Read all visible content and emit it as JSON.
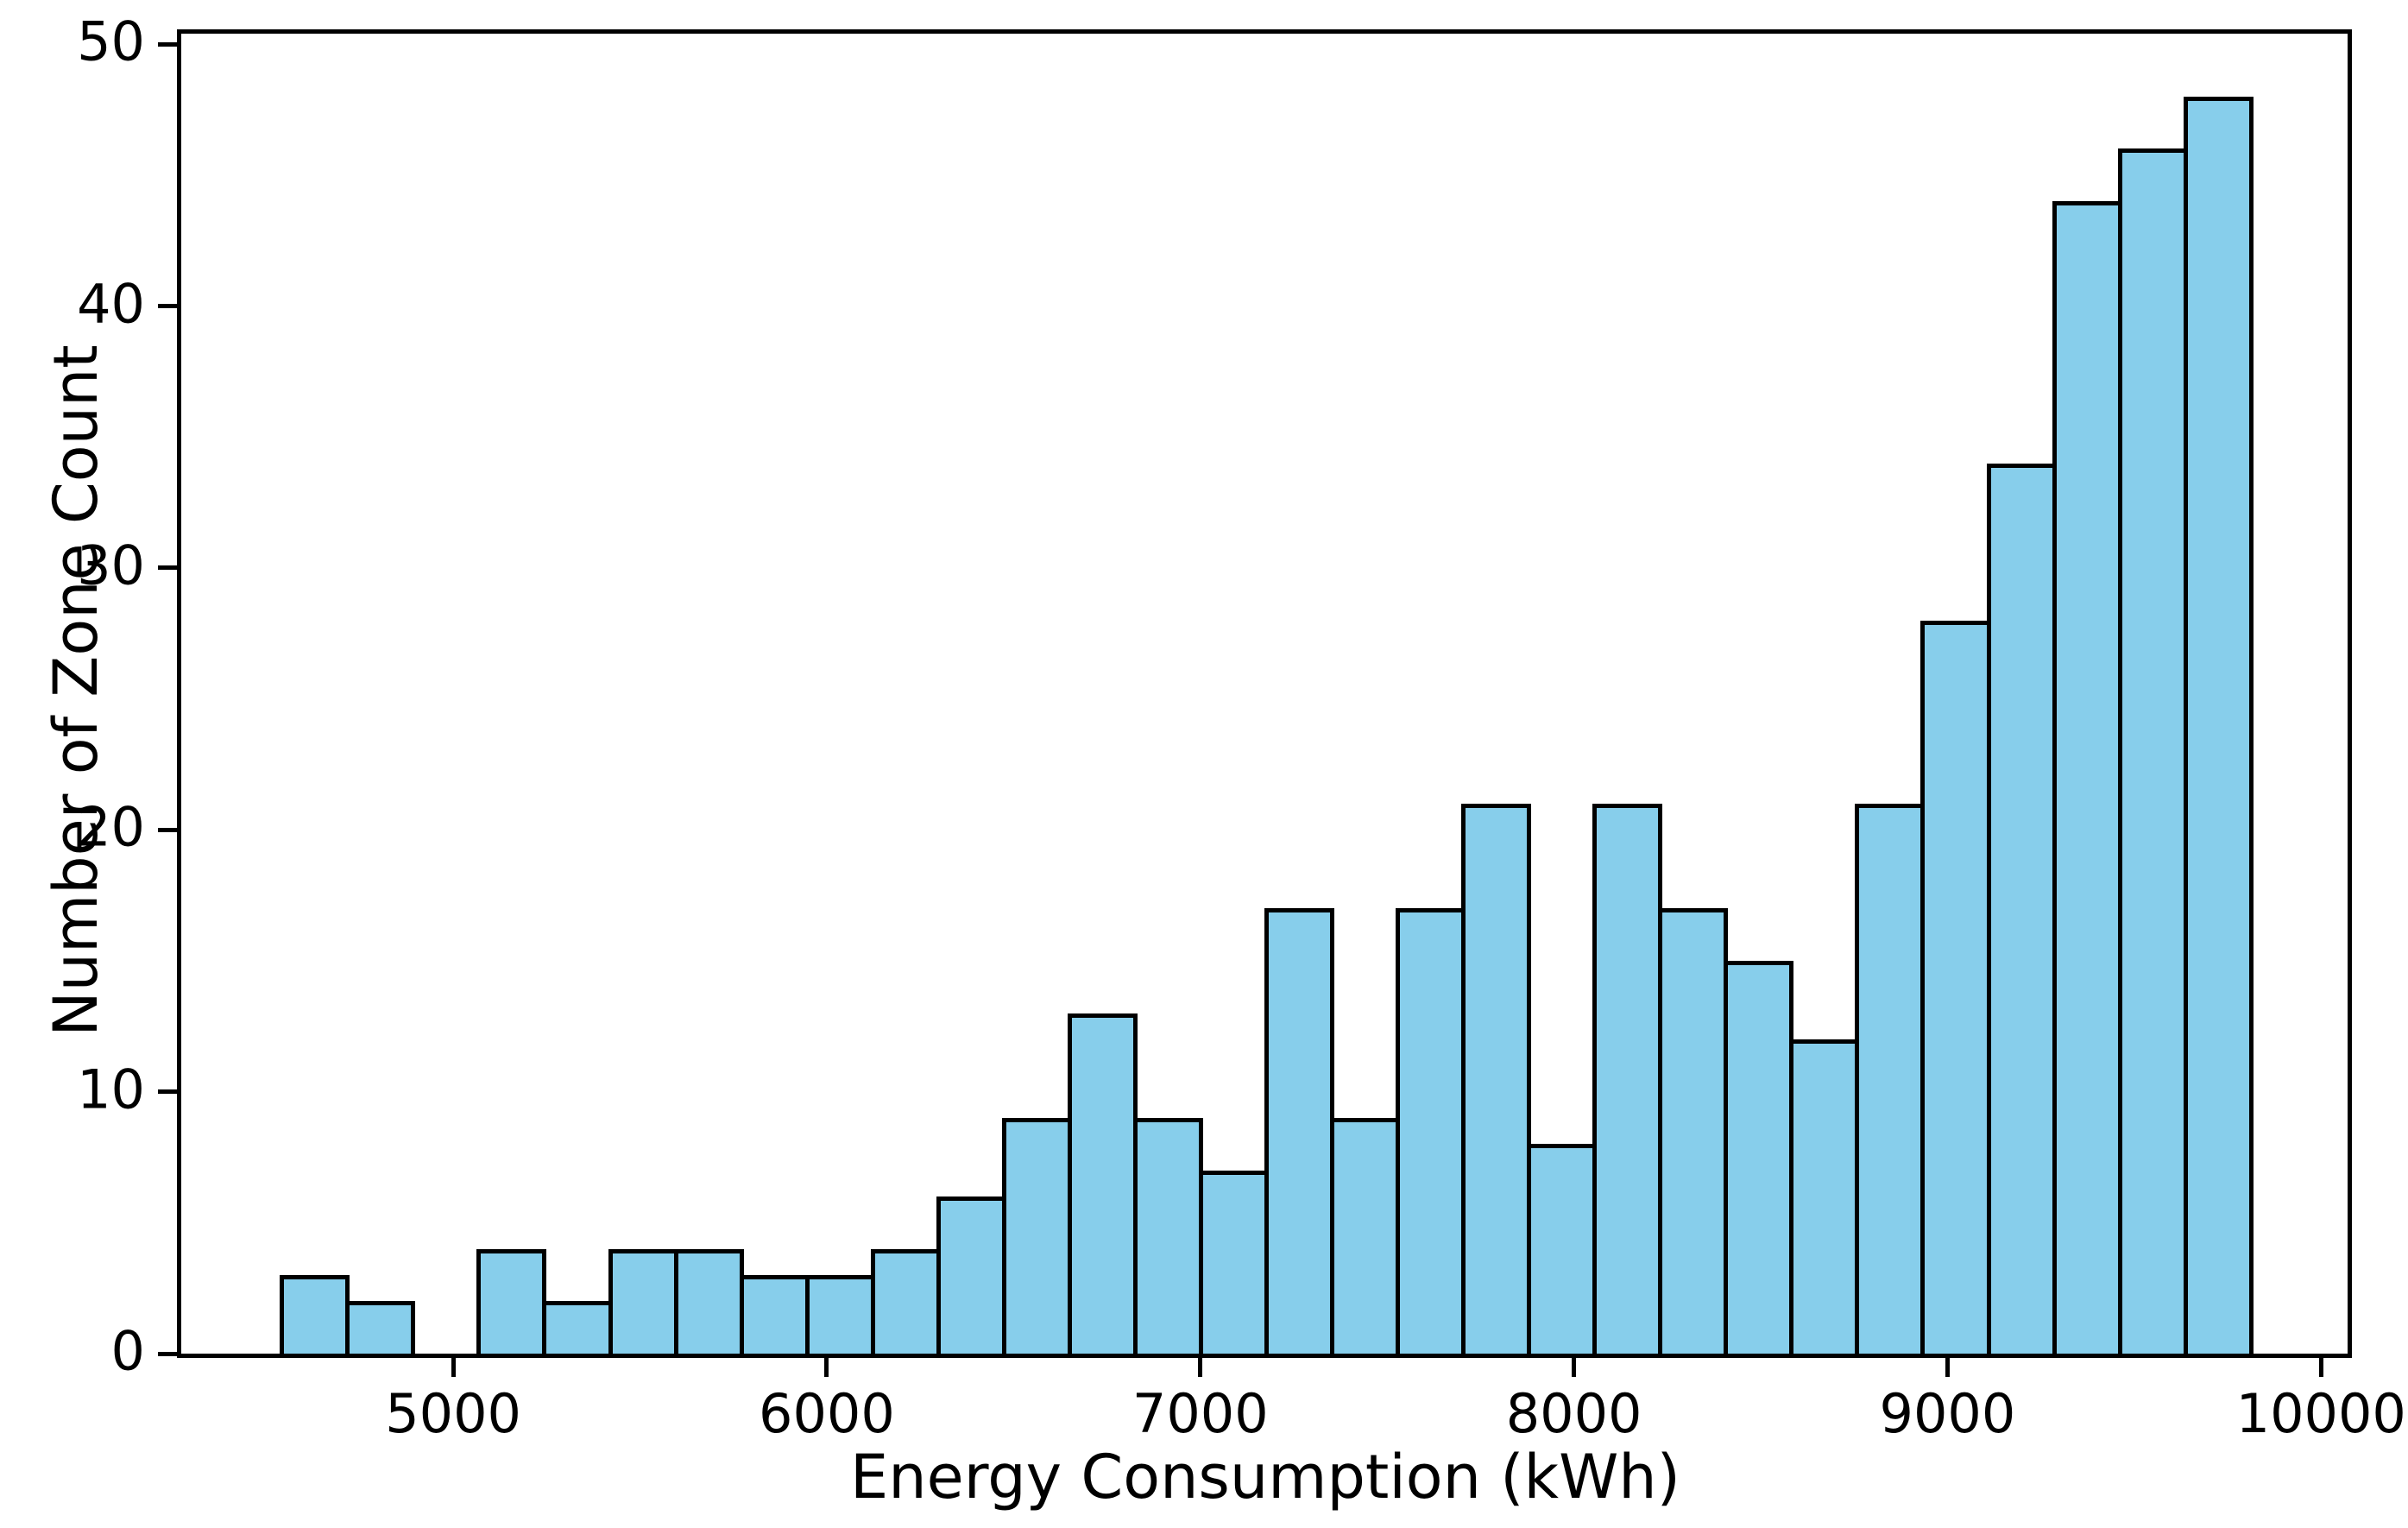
{
  "figure": {
    "background_color": "#ffffff",
    "text_color": "#000000",
    "title": ""
  },
  "chart_data": {
    "type": "histogram",
    "title": "",
    "xlabel": "Energy Consumption (kWh)",
    "ylabel": "Number of Zone Count",
    "bar_fill_color": "#87CEEB",
    "bar_edge_color": "#000000",
    "bin_start": 4536,
    "bin_width": 175.7,
    "counts": [
      3,
      2,
      0,
      4,
      2,
      4,
      4,
      3,
      3,
      4,
      6,
      9,
      13,
      9,
      7,
      17,
      9,
      17,
      21,
      8,
      21,
      17,
      15,
      12,
      21,
      28,
      34,
      44,
      46,
      48
    ],
    "xlim": [
      4272,
      10071
    ],
    "ylim": [
      0,
      50.4
    ],
    "x_ticks": [
      5000,
      6000,
      7000,
      8000,
      9000,
      10000
    ],
    "y_ticks": [
      0,
      10,
      20,
      30,
      40,
      50
    ],
    "grid": false,
    "legend": null
  }
}
